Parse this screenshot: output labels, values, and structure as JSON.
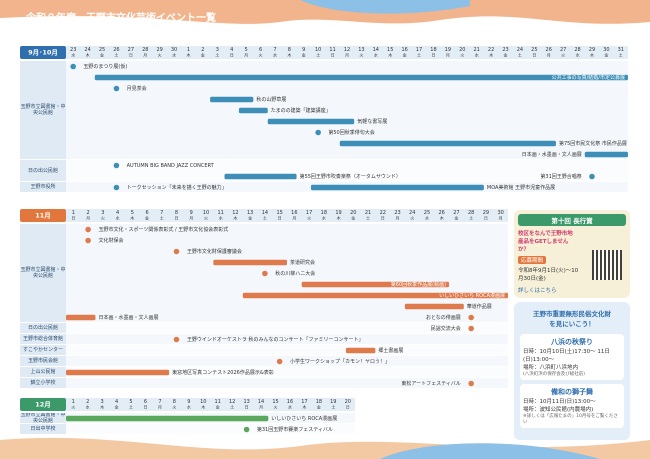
{
  "header": {
    "title": "令和８年度　王野市文化芸術イベント一覧"
  },
  "sections": [
    {
      "label": "9月･10月",
      "color": "#2f6fae",
      "bar": "#3d8fb8",
      "days": [
        23,
        24,
        25,
        26,
        27,
        28,
        29,
        30,
        1,
        2,
        3,
        4,
        5,
        6,
        7,
        8,
        9,
        10,
        11,
        12,
        13,
        14,
        15,
        16,
        17,
        18,
        19,
        20,
        21,
        22,
        23,
        24,
        25,
        26,
        27,
        28,
        29,
        30,
        31
      ],
      "weekdays": [
        "水",
        "木",
        "金",
        "土",
        "日",
        "月",
        "火",
        "水",
        "木",
        "金",
        "土",
        "日",
        "月",
        "火",
        "水",
        "木",
        "金",
        "土",
        "日",
        "月",
        "火",
        "水",
        "木",
        "金",
        "土",
        "日",
        "月",
        "火",
        "水",
        "木",
        "金",
        "土",
        "日",
        "月",
        "火",
        "水",
        "木",
        "金",
        "土"
      ],
      "groups": [
        {
          "name": "玉野市立図書館・中央公民館",
          "rows": [
            [
              {
                "name": "玉野のまつり展(仮)",
                "start": "9/23",
                "end": "9/23"
              }
            ],
            [
              {
                "name": "公共工事の写真/結婚/市定公募展",
                "start": "9/25",
                "end": "10/31"
              }
            ],
            [
              {
                "name": "月見茶会",
                "start": "9/26",
                "end": "9/26"
              }
            ],
            [
              {
                "name": "秋の山野草展",
                "start": "10/3",
                "end": "10/5"
              }
            ],
            [
              {
                "name": "たまのの建築「建築講座」",
                "start": "10/5",
                "end": "10/6"
              }
            ],
            [
              {
                "name": "気軽な書写展",
                "start": "10/7",
                "end": "10/12"
              }
            ],
            [
              {
                "name": "第50回秋季俳句大会",
                "start": "10/10",
                "end": "10/10"
              }
            ],
            [
              {
                "name": "第75回市民文化祭 市民作品展",
                "start": "10/12",
                "end": "10/26"
              }
            ],
            [
              {
                "name": "日本画・水墨画・文人画展",
                "start": "10/29",
                "end": "10/31"
              }
            ]
          ]
        },
        {
          "name": "日の出公民館",
          "rows": [
            [
              {
                "name": "AUTUMN BIG BAND JAZZ CONCERT",
                "start": "9/26",
                "end": "9/26"
              }
            ],
            [
              {
                "name": "第55回王野市吹奏楽祭（オータムサウンド）",
                "start": "10/4",
                "end": "10/8"
              },
              {
                "name": "第31回王野合唱祭",
                "start": "10/29",
                "end": "10/29"
              }
            ]
          ]
        },
        {
          "name": "王野市役所",
          "rows": [
            [
              {
                "name": "トークセッション「未来を描く王野の魅力」",
                "start": "9/26",
                "end": "9/26"
              },
              {
                "name": "MOA美術館 王野市児童作品展",
                "start": "10/10",
                "end": "10/21"
              }
            ]
          ]
        }
      ]
    },
    {
      "label": "11月",
      "color": "#e2773d",
      "bar": "#de7a4c",
      "days": [
        1,
        2,
        3,
        4,
        5,
        6,
        7,
        8,
        9,
        10,
        11,
        12,
        13,
        14,
        15,
        16,
        17,
        18,
        19,
        20,
        21,
        22,
        23,
        24,
        25,
        26,
        27,
        28,
        29,
        30
      ],
      "weekdays": [
        "日",
        "月",
        "火",
        "水",
        "木",
        "金",
        "土",
        "日",
        "月",
        "火",
        "水",
        "木",
        "金",
        "土",
        "日",
        "月",
        "火",
        "水",
        "木",
        "金",
        "土",
        "日",
        "月",
        "火",
        "水",
        "木",
        "金",
        "土",
        "日",
        "月"
      ],
      "groups": [
        {
          "name": "玉野市立図書館・中央公民館",
          "rows": [
            [
              {
                "name": "玉野市文化・スポーツ関係表彰式 / 王野市文化協会表彰式",
                "start": "11/2",
                "end": "11/2"
              }
            ],
            [
              {
                "name": "文化財保会",
                "start": "11/2",
                "end": "11/2"
              }
            ],
            [
              {
                "name": "王野市文化財保護審議会",
                "start": "11/8",
                "end": "11/8"
              }
            ],
            [
              {
                "name": "茶道研究会",
                "start": "11/11",
                "end": "11/15"
              }
            ],
            [
              {
                "name": "秋の川柳ハニ大会",
                "start": "11/14",
                "end": "11/14"
              }
            ],
            [
              {
                "name": "第60回秋季作品展(絵画)",
                "start": "11/17",
                "end": "11/26"
              }
            ],
            [
              {
                "name": "いしいひさいち ROCA漫画展",
                "start": "11/13",
                "end": "11/30"
              }
            ],
            [
              {
                "name": "華道作品展",
                "start": "11/24",
                "end": "11/27"
              }
            ],
            [
              {
                "name": "日本画・水墨画・文人画展",
                "start": "11/1",
                "end": "11/2"
              },
              {
                "name": "おとなの俳画展",
                "start": "11/28",
                "end": "11/28"
              }
            ]
          ]
        },
        {
          "name": "日の出公民館",
          "rows": [
            [
              {
                "name": "民謡交流大会",
                "start": "11/28",
                "end": "11/28"
              }
            ]
          ]
        },
        {
          "name": "王野市総合体育館",
          "rows": [
            [
              {
                "name": "王野ウインドオーケストラ 秋のみんなのコンサート「ファミリーコンサート」",
                "start": "11/8",
                "end": "11/8"
              }
            ]
          ]
        },
        {
          "name": "すこやかセンター",
          "rows": [
            [
              {
                "name": "郷土書画展",
                "start": "11/20",
                "end": "11/21"
              }
            ]
          ]
        },
        {
          "name": "玉野市民会館",
          "rows": [
            [
              {
                "name": "小学生ワークショップ「カモン！ヤロう！」",
                "start": "11/15",
                "end": "11/15"
              }
            ]
          ]
        },
        {
          "name": "上山公民館",
          "rows": [
            [
              {
                "name": "東窓地区写真コンテスト2026作品展示&表彰",
                "start": "11/1",
                "end": "11/7"
              }
            ]
          ]
        },
        {
          "name": "錦立小学校",
          "rows": [
            [
              {
                "name": "東松アートフェスティバル",
                "start": "11/28",
                "end": "11/28"
              }
            ]
          ]
        }
      ]
    },
    {
      "label": "12月",
      "color": "#3c9a6a",
      "bar": "#5aa85c",
      "days": [
        1,
        2,
        3,
        4,
        5,
        6,
        7,
        8,
        9,
        10,
        11,
        12,
        13,
        14,
        15,
        16,
        17,
        18,
        19,
        20
      ],
      "weekdays": [
        "火",
        "水",
        "木",
        "金",
        "土",
        "日",
        "月",
        "火",
        "水",
        "木",
        "金",
        "土",
        "日",
        "月",
        "火",
        "水",
        "木",
        "金",
        "土",
        "日"
      ],
      "groups": [
        {
          "name": "玉野市立図書館・中央公民館",
          "rows": [
            [
              {
                "name": "いしいひさいち ROCA漫画展",
                "start": "12/1",
                "end": "12/14"
              }
            ]
          ]
        },
        {
          "name": "日出中学校",
          "rows": [
            [
              {
                "name": "第31回玉野市賽楽フェスティバル",
                "start": "12/13",
                "end": "12/13"
              }
            ]
          ]
        }
      ]
    }
  ],
  "side": {
    "award": {
      "title": "第十回 長行賞",
      "lead": "校区をなんで王野市地産品をGETしませんか？",
      "period_label": "応募期間",
      "period": "令和8年9月1日(火)～10月30日(金)",
      "more": "詳しくはこちら"
    },
    "heritage": {
      "title": "王野市重要無形民俗文化財を見にいこう！",
      "items": [
        {
          "name": "八浜の秋祭り",
          "when": "日時：10月10日(土)17:30～ 11日(日)13:00～",
          "where": "場所：八浜町八浜地内",
          "note": "(八浜町浜の保存会及び総社前)"
        },
        {
          "name": "備和の獅子舞",
          "when": "日時：10月11日(日)13:00～",
          "where": "場所：波知公民館(内農場内)",
          "note": "※詳しくは「広報たまの」10月号をご覧ください"
        }
      ]
    }
  }
}
